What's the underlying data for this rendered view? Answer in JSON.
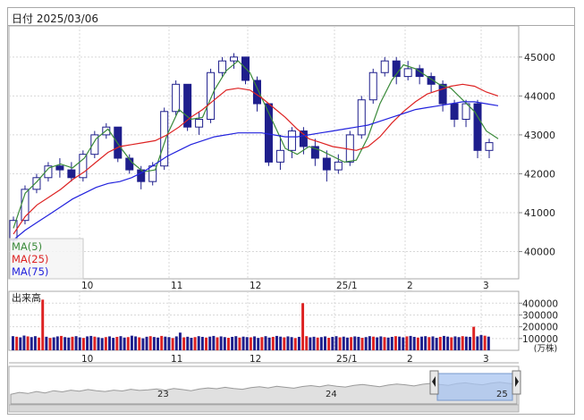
{
  "header": {
    "date_label": "日付 2025/03/06"
  },
  "chart_data": [
    {
      "type": "candlestick",
      "name": "price",
      "y_ticks": [
        "45000",
        "44000",
        "43000",
        "42000",
        "41000",
        "40000"
      ],
      "ylim": [
        39300,
        45800
      ],
      "x_ticks": [
        "10",
        "11",
        "12",
        "25/1",
        "2",
        "3"
      ],
      "legend": [
        "MA(5)",
        "MA(25)",
        "MA(75)"
      ],
      "legend_placement": "bottom-left",
      "colors": {
        "up": "#ffffff",
        "down": "#1e1e8c",
        "ma5": "#3a8a3a",
        "ma25": "#dd2222",
        "ma75": "#2222dd"
      },
      "series": [
        {
          "name": "MA(5)",
          "values": [
            40600,
            41500,
            41800,
            42150,
            42250,
            42150,
            42400,
            42900,
            43150,
            42700,
            42300,
            42050,
            42100,
            43000,
            43650,
            43400,
            43450,
            44150,
            44650,
            44900,
            44600,
            43950,
            43300,
            42650,
            42500,
            42700,
            42600,
            42450,
            42300,
            42350,
            42950,
            43800,
            44400,
            44800,
            44700,
            44500,
            44300,
            44200,
            43900,
            43600,
            43100,
            42900
          ]
        },
        {
          "name": "MA(25)",
          "values": [
            40450,
            40900,
            41200,
            41400,
            41600,
            41850,
            42050,
            42300,
            42550,
            42700,
            42750,
            42800,
            42850,
            43000,
            43200,
            43450,
            43650,
            43900,
            44150,
            44200,
            44150,
            43950,
            43700,
            43450,
            43150,
            42900,
            42800,
            42700,
            42650,
            42600,
            42700,
            42950,
            43300,
            43600,
            43850,
            44050,
            44150,
            44250,
            44300,
            44250,
            44100,
            44000
          ]
        },
        {
          "name": "MA(75)",
          "values": [
            40300,
            40550,
            40750,
            40950,
            41150,
            41350,
            41500,
            41650,
            41750,
            41800,
            41900,
            42050,
            42250,
            42450,
            42600,
            42750,
            42850,
            42950,
            43000,
            43050,
            43050,
            43050,
            43000,
            42950,
            42950,
            43000,
            43050,
            43100,
            43150,
            43200,
            43250,
            43350,
            43450,
            43550,
            43650,
            43700,
            43750,
            43800,
            43850,
            43850,
            43800,
            43750
          ]
        }
      ],
      "candles": [
        [
          40300,
          40800,
          40200,
          40900
        ],
        [
          40800,
          41600,
          40700,
          41700
        ],
        [
          41600,
          41900,
          41500,
          42000
        ],
        [
          41900,
          42200,
          41800,
          42300
        ],
        [
          42200,
          42100,
          41900,
          42400
        ],
        [
          42100,
          41900,
          41800,
          42300
        ],
        [
          41900,
          42500,
          41800,
          42600
        ],
        [
          42500,
          43000,
          42400,
          43100
        ],
        [
          43000,
          43200,
          42900,
          43300
        ],
        [
          43200,
          42400,
          42300,
          43200
        ],
        [
          42400,
          42100,
          42000,
          42500
        ],
        [
          42100,
          41800,
          41600,
          42200
        ],
        [
          41800,
          42200,
          41700,
          42300
        ],
        [
          42200,
          43600,
          42100,
          43700
        ],
        [
          43600,
          44300,
          43500,
          44400
        ],
        [
          44300,
          43200,
          43100,
          44300
        ],
        [
          43200,
          43400,
          43000,
          43600
        ],
        [
          43400,
          44600,
          43300,
          44700
        ],
        [
          44600,
          44900,
          44500,
          45000
        ],
        [
          44900,
          45000,
          44700,
          45100
        ],
        [
          45000,
          44400,
          44300,
          45000
        ],
        [
          44400,
          43800,
          43600,
          44500
        ],
        [
          43800,
          42300,
          42200,
          43800
        ],
        [
          42300,
          42600,
          42100,
          43000
        ],
        [
          42600,
          43100,
          42400,
          43200
        ],
        [
          43100,
          42700,
          42500,
          43200
        ],
        [
          42700,
          42400,
          42200,
          42900
        ],
        [
          42400,
          42100,
          41800,
          42600
        ],
        [
          42100,
          42300,
          42000,
          42500
        ],
        [
          42300,
          43000,
          42200,
          43100
        ],
        [
          43000,
          43900,
          42900,
          44000
        ],
        [
          43900,
          44600,
          43800,
          44700
        ],
        [
          44600,
          44900,
          44500,
          45000
        ],
        [
          44900,
          44500,
          44300,
          45000
        ],
        [
          44500,
          44700,
          44400,
          44900
        ],
        [
          44700,
          44500,
          44300,
          44800
        ],
        [
          44500,
          44300,
          44100,
          44600
        ],
        [
          44300,
          43800,
          43600,
          44400
        ],
        [
          43800,
          43400,
          43200,
          43900
        ],
        [
          43400,
          43800,
          43200,
          43900
        ],
        [
          43800,
          42600,
          42400,
          43900
        ],
        [
          42600,
          42800,
          42400,
          42900
        ]
      ]
    },
    {
      "type": "bar",
      "name": "volume",
      "title": "出来高",
      "unit": "(万株)",
      "y_ticks": [
        "400000",
        "300000",
        "200000",
        "100000"
      ],
      "ylim": [
        0,
        440000
      ],
      "x_ticks": [
        "10",
        "11",
        "12",
        "25/1",
        "2",
        "3"
      ],
      "values": [
        120000,
        115000,
        110000,
        125000,
        118000,
        112000,
        120000,
        108000,
        430000,
        115000,
        105000,
        110000,
        118000,
        122000,
        112000,
        108000,
        115000,
        120000,
        110000,
        105000,
        118000,
        122000,
        116000,
        110000,
        104000,
        112000,
        118000,
        106000,
        114000,
        120000,
        108000,
        112000,
        124000,
        118000,
        110000,
        102000,
        115000,
        120000,
        113000,
        108000,
        122000,
        116000,
        112000,
        104000,
        118000,
        150000,
        110000,
        115000,
        106000,
        112000,
        120000,
        114000,
        108000,
        116000,
        122000,
        110000,
        118000,
        112000,
        106000,
        114000,
        120000,
        108000,
        116000,
        112000,
        110000,
        118000,
        105000,
        112000,
        120000,
        108000,
        114000,
        122000,
        116000,
        110000,
        118000,
        112000,
        104000,
        114000,
        400000,
        120000,
        110000,
        115000,
        108000,
        112000,
        118000,
        106000,
        114000,
        120000,
        110000,
        116000,
        108000,
        112000,
        118000,
        114000,
        106000,
        112000,
        120000,
        116000,
        110000,
        118000,
        112000,
        108000,
        114000,
        120000,
        116000,
        110000,
        118000,
        122000,
        114000,
        108000,
        116000,
        120000,
        112000,
        118000,
        106000,
        114000,
        122000,
        116000,
        110000,
        118000,
        112000,
        120000,
        116000,
        114000,
        200000,
        118000,
        130000,
        124000,
        116000
      ]
    },
    {
      "type": "area",
      "name": "navigator",
      "x_ticks": [
        "23",
        "24",
        "25"
      ],
      "values": [
        45,
        52,
        48,
        55,
        50,
        58,
        54,
        60,
        56,
        62,
        58,
        55,
        60,
        57,
        63,
        59,
        61,
        64,
        60,
        66,
        62,
        58,
        64,
        68,
        65,
        70,
        66,
        63,
        69,
        72,
        68,
        74,
        70,
        67,
        73,
        76,
        72,
        78,
        74,
        71,
        77,
        80,
        76,
        72,
        78,
        82,
        79,
        75,
        81,
        84,
        80,
        77,
        83,
        86,
        82,
        79,
        85,
        88,
        84,
        81
      ]
    }
  ]
}
